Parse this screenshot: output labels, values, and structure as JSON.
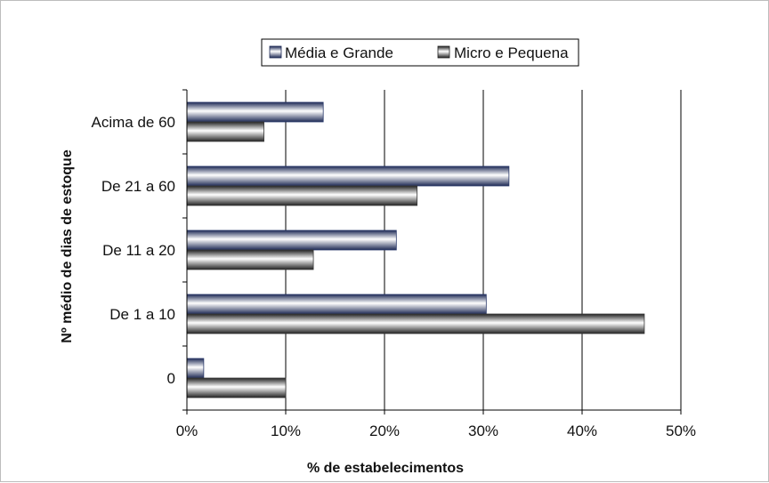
{
  "chart_data": {
    "type": "bar",
    "orientation": "horizontal",
    "categories": [
      "0",
      "De 1 a 10",
      "De 11 a 20",
      "De 21 a 60",
      "Acima de 60"
    ],
    "series": [
      {
        "name": "Média e Grande",
        "values": [
          1.7,
          30.3,
          21.2,
          32.6,
          13.8
        ],
        "color": "#2b3a6b"
      },
      {
        "name": "Micro e Pequena",
        "values": [
          10.0,
          46.3,
          12.8,
          23.3,
          7.8
        ],
        "color": "#3a3a3a"
      }
    ],
    "xlabel": "% de estabelecimentos",
    "ylabel": "Nº médio de dias de estoque",
    "xlim": [
      0,
      50
    ],
    "xticks": [
      0,
      10,
      20,
      30,
      40,
      50
    ],
    "xtick_labels": [
      "0%",
      "10%",
      "20%",
      "30%",
      "40%",
      "50%"
    ],
    "grid": "vertical",
    "legend_position": "top-center"
  }
}
